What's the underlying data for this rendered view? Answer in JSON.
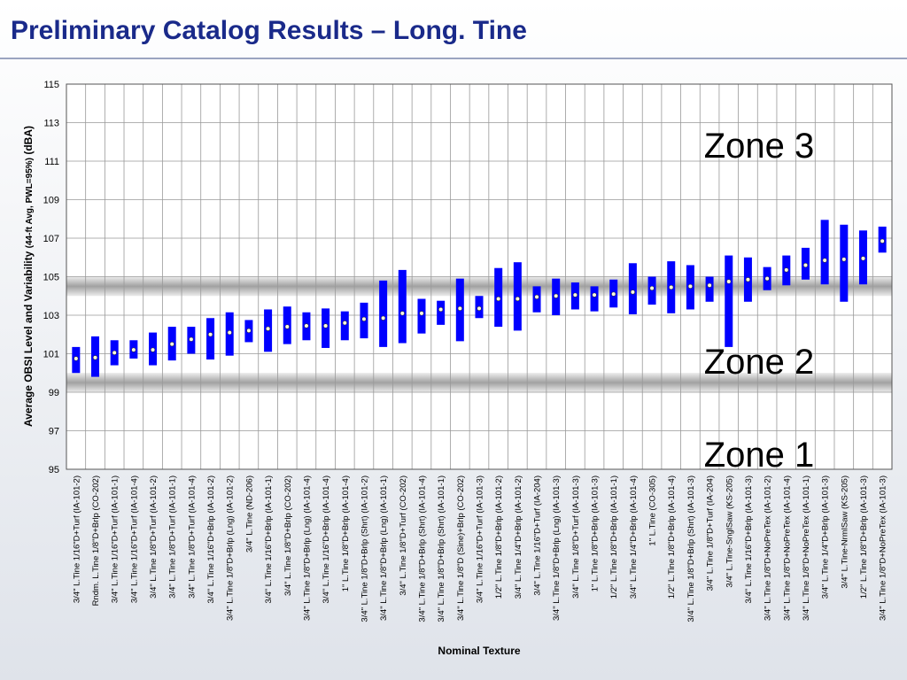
{
  "chart_data": {
    "type": "range",
    "title": "Preliminary Catalog Results – Long. Tine",
    "y_label": "Average OBSI Level and Variability",
    "y_label_note": "(44-ft Avg, PWL=95%)",
    "y_label_unit": "(dBA)",
    "x_label": "Nominal Texture",
    "annotations": [
      "Zone 3",
      "Zone 2",
      "Zone 1"
    ],
    "zone_boundaries": [
      99.5,
      104.5
    ],
    "categories": [
      "3/4\" L.Tine 1/16\"D+Turf (IA-101-2)",
      "Rndm. L.Tine 1/8\"D+Brlp (CO-202)",
      "3/4\" L.Tine 1/16\"D+Turf (IA-101-1)",
      "3/4\" L.Tine 1/16\"D+Turf (IA-101-4)",
      "3/4\" L.Tine 1/8\"D+Turf (IA-101-2)",
      "3/4\" L.Tine 1/8\"D+Turf (IA-101-1)",
      "3/4\" L.Tine 1/8\"D+Turf (IA-101-4)",
      "3/4\" L.Tine 1/16\"D+Brlp (IA-101-2)",
      "3/4\" L.Tine 1/8\"D+Brlp (Lng) (IA-101-2)",
      "3/4\" L.Tine (ND-206)",
      "3/4\" L.Tine 1/16\"D+Brlp (IA-101-1)",
      "3/4\" L.Tine 1/8\"D+Brlp (CO-202)",
      "3/4\" L.Tine 1/8\"D+Brlp (Lng) (IA-101-4)",
      "3/4\" L.Tine 1/16\"D+Brlp (IA-101-4)",
      "1\" L.Tine 1/8\"D+Brlp (IA-101-4)",
      "3/4\" L.Tine 1/8\"D+Brlp (Shrt) (IA-101-2)",
      "3/4\" L.Tine 1/8\"D+Brlp (Lng) (IA-101-1)",
      "3/4\" L.Tine 1/8\"D+Turf (CO-202)",
      "3/4\" L.Tine 1/8\"D+Brlp (Shrt) (IA-101-4)",
      "3/4\" L.Tine 1/8\"D+Brlp (Shrt) (IA-101-1)",
      "3/4\" L.Tine 1/8\"D (Sine)+Brlp (CO-202)",
      "3/4\" L.Tine 1/16\"D+Turf (IA-101-3)",
      "1/2\" L.Tine 1/8\"D+Brlp (IA-101-2)",
      "3/4\" L.Tine 1/4\"D+Brlp (IA-101-2)",
      "3/4\" L.Tine 1/16\"D+Turf (IA-204)",
      "3/4\" L.Tine 1/8\"D+Brlp (Lng) (IA-101-3)",
      "3/4\" L.Tine 1/8\"D+Turf (IA-101-3)",
      "1\" L.Tine 1/8\"D+Brlp (IA-101-3)",
      "1/2\" L.Tine 1/8\"D+Brlp (IA-101-1)",
      "3/4\" L.Tine 1/4\"D+Brlp (IA-101-4)",
      "1\" L.Tine (CO-305)",
      "1/2\" L.Tine 1/8\"D+Brlp (IA-101-4)",
      "3/4\" L.Tine 1/8\"D+Brlp (Shrt) (IA-101-3)",
      "3/4\" L.Tine 1/8\"D+Turf (IA-204)",
      "3/4\" L.Tine-SnglSaw (KS-205)",
      "3/4\" L.Tine 1/16\"D+Brlp (IA-101-3)",
      "3/4\" L.Tine 1/8\"D+NoPreTex (IA-101-2)",
      "3/4\" L.Tine 1/8\"D+NoPreTex (IA-101-4)",
      "3/4\" L.Tine 1/8\"D+NoPreTex (IA-101-1)",
      "3/4\" L.Tine 1/4\"D+Brlp (IA-101-3)",
      "3/4\" L.Tine-NrmlSaw (KS-205)",
      "1/2\" L.Tine 1/8\"D+Brlp (IA-101-3)",
      "3/4\" L.Tine 1/8\"D+NoPreTex (IA-101-3)"
    ],
    "low": [
      100.0,
      99.8,
      100.4,
      100.75,
      100.4,
      100.65,
      101.0,
      100.7,
      100.9,
      101.6,
      101.1,
      101.5,
      101.7,
      101.3,
      101.7,
      101.8,
      101.35,
      101.55,
      102.05,
      102.5,
      101.65,
      102.85,
      102.4,
      102.2,
      103.15,
      103.0,
      103.3,
      103.2,
      103.4,
      103.05,
      103.55,
      103.1,
      103.3,
      103.7,
      101.35,
      103.7,
      104.3,
      104.55,
      104.85,
      104.6,
      103.7,
      104.6,
      106.25
    ],
    "mean": [
      100.75,
      100.8,
      101.05,
      101.2,
      101.2,
      101.5,
      101.75,
      102.0,
      102.1,
      102.2,
      102.3,
      102.4,
      102.45,
      102.45,
      102.6,
      102.8,
      102.85,
      103.1,
      103.1,
      103.3,
      103.35,
      103.35,
      103.85,
      103.85,
      103.95,
      104.0,
      104.05,
      104.05,
      104.1,
      104.2,
      104.4,
      104.45,
      104.5,
      104.55,
      104.75,
      104.85,
      104.9,
      105.35,
      105.6,
      105.85,
      105.9,
      105.95,
      106.85
    ],
    "high": [
      101.35,
      101.9,
      101.7,
      101.7,
      102.1,
      102.4,
      102.4,
      102.85,
      103.15,
      102.75,
      103.3,
      103.45,
      103.15,
      103.35,
      103.2,
      103.65,
      104.8,
      105.35,
      103.85,
      103.75,
      104.9,
      104.0,
      105.45,
      105.75,
      104.5,
      104.9,
      104.7,
      104.5,
      104.85,
      105.7,
      105.0,
      105.8,
      105.6,
      105.0,
      106.1,
      106.0,
      105.5,
      106.1,
      106.5,
      107.95,
      107.7,
      107.4,
      107.6
    ],
    "color": "#0000ff",
    "ylim": [
      95,
      115
    ],
    "yticks": [
      95,
      97,
      99,
      101,
      103,
      105,
      107,
      109,
      111,
      113,
      115
    ],
    "grid": true
  }
}
